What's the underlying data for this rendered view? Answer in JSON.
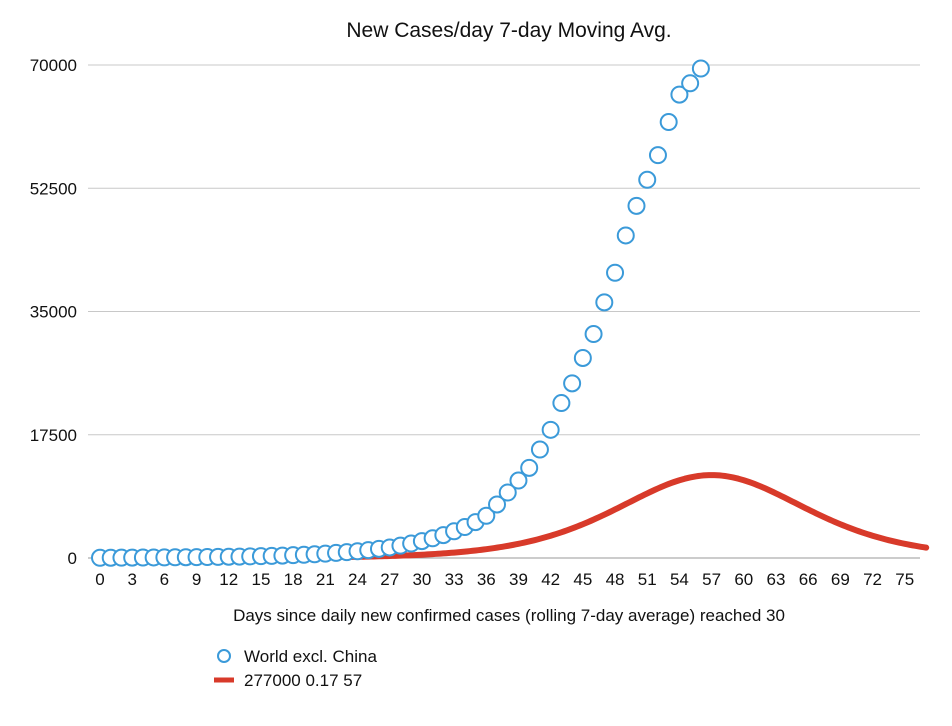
{
  "chart_data": {
    "type": "line",
    "title": "New Cases/day 7-day Moving Avg.",
    "xlabel": "Days since daily new confirmed cases (rolling 7-day average) reached 30",
    "ylabel": "",
    "xlim": [
      0,
      77
    ],
    "ylim": [
      0,
      70000
    ],
    "grid": true,
    "legend_position": "bottom-left",
    "x_ticks": [
      0,
      3,
      6,
      9,
      12,
      15,
      18,
      21,
      24,
      27,
      30,
      33,
      36,
      39,
      42,
      45,
      48,
      51,
      54,
      57,
      60,
      63,
      66,
      69,
      72,
      75
    ],
    "y_ticks": [
      0,
      17500,
      35000,
      52500,
      70000
    ],
    "series": [
      {
        "name": "World excl. China",
        "style": "markers",
        "color": "#3b9ad9",
        "x": [
          0,
          1,
          2,
          3,
          4,
          5,
          6,
          7,
          8,
          9,
          10,
          11,
          12,
          13,
          14,
          15,
          16,
          17,
          18,
          19,
          20,
          21,
          22,
          23,
          24,
          25,
          26,
          27,
          28,
          29,
          30,
          31,
          32,
          33,
          34,
          35,
          36,
          37,
          38,
          39,
          40,
          41,
          42,
          43,
          44,
          45,
          46,
          47,
          48,
          49,
          50,
          51,
          52,
          53,
          54,
          55,
          56
        ],
        "values": [
          30,
          40,
          50,
          60,
          70,
          80,
          90,
          100,
          110,
          125,
          140,
          160,
          180,
          200,
          230,
          260,
          300,
          340,
          400,
          460,
          530,
          620,
          720,
          830,
          960,
          1110,
          1300,
          1500,
          1750,
          2050,
          2400,
          2800,
          3250,
          3800,
          4400,
          5100,
          6000,
          7600,
          9300,
          11000,
          12800,
          15400,
          18200,
          22000,
          24800,
          28400,
          31800,
          36300,
          40500,
          45800,
          50000,
          53700,
          57200,
          61900,
          65800,
          67400,
          69500
        ]
      },
      {
        "name": "277000 0.17 57",
        "style": "line",
        "color": "#d83a2a",
        "logistic": {
          "total": 277000,
          "rate": 0.17,
          "peak": 57
        },
        "x_range": [
          0,
          77
        ]
      }
    ]
  }
}
